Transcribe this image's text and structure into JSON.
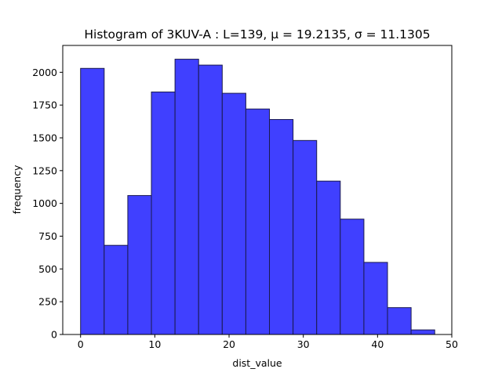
{
  "chart_data": {
    "type": "bar",
    "title": "Histogram of 3KUV-A : L=139, μ = 19.2135, σ = 11.1305",
    "xlabel": "dist_value",
    "ylabel": "frequency",
    "xlim": [
      -2.4,
      50.0
    ],
    "ylim": [
      0,
      2205
    ],
    "xticks": [
      0,
      10,
      20,
      30,
      40,
      50
    ],
    "yticks": [
      0,
      250,
      500,
      750,
      1000,
      1250,
      1500,
      1750,
      2000
    ],
    "bin_edges": [
      0.0,
      3.18,
      6.36,
      9.54,
      12.72,
      15.9,
      19.08,
      22.26,
      25.44,
      28.62,
      31.8,
      34.98,
      38.16,
      41.34,
      44.52,
      47.7
    ],
    "values": [
      2030,
      680,
      1060,
      1850,
      2100,
      2055,
      1840,
      1720,
      1640,
      1480,
      1170,
      880,
      550,
      205,
      35
    ],
    "bar_color": "#4040ff",
    "edge_color": "#1a1a4d",
    "grid": false,
    "legend": "none"
  }
}
